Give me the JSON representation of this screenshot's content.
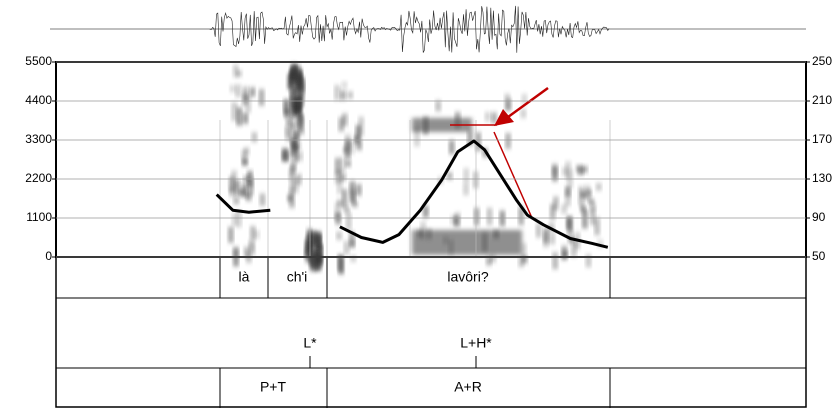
{
  "chart_data": {
    "type": "line",
    "x": [
      0.3,
      0.33,
      0.36,
      0.4,
      0.5,
      0.53,
      0.57,
      0.61,
      0.64,
      0.68,
      0.72,
      0.75,
      0.78,
      0.8,
      0.83,
      0.86,
      0.88,
      0.91,
      0.96,
      1.0,
      1.03
    ],
    "xlim": [
      0,
      1.4
    ],
    "ylim": [
      0,
      5500
    ],
    "yticks": [
      0,
      1100,
      2200,
      3300,
      4400,
      5500
    ],
    "y2lim": [
      50,
      250
    ],
    "y2ticks": [
      50,
      90,
      130,
      170,
      210,
      250
    ],
    "grid": true,
    "series": [
      {
        "color": "#000000",
        "axis": "y2",
        "values": [
          114,
          98,
          96,
          98,
          null,
          81,
          70,
          65,
          73,
          98,
          129,
          158,
          169,
          160,
          134,
          108,
          93,
          83,
          69,
          64,
          60
        ]
      }
    ]
  },
  "tiers": [
    [
      "là",
      "ch'i",
      "lavôri?"
    ],
    [
      "L*",
      "L+H*"
    ],
    [
      "P+T",
      "A+R"
    ]
  ]
}
